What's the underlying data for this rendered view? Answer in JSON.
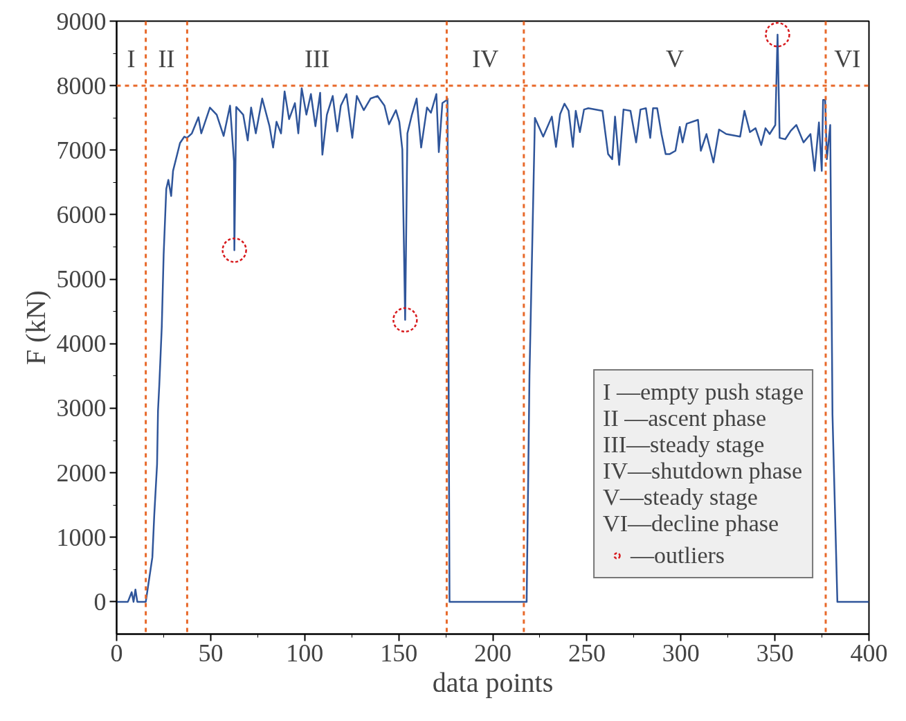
{
  "chart_data": {
    "type": "line",
    "xlabel": "data points",
    "ylabel": "F (kN)",
    "xlim": [
      0,
      400
    ],
    "ylim": [
      -500,
      9000
    ],
    "xticks": [
      0,
      50,
      100,
      150,
      200,
      250,
      300,
      350,
      400
    ],
    "yticks": [
      0,
      1000,
      2000,
      3000,
      4000,
      5000,
      6000,
      7000,
      8000,
      9000
    ],
    "grid": false,
    "legend": "bottom right",
    "line_style": "solid",
    "series": [
      {
        "color": "#2f559a",
        "x": [
          0,
          6,
          8,
          9,
          10,
          11,
          13,
          15.5,
          19,
          20,
          21.5,
          22,
          22.7,
          24,
          25,
          26.4,
          27.5,
          29,
          30,
          33.7,
          36,
          37.4,
          40,
          43.5,
          45,
          49.6,
          53.2,
          56.9,
          60.3,
          62.4,
          62.6,
          63.6,
          67.3,
          69.7,
          71.5,
          74,
          77.4,
          81.3,
          83.2,
          85,
          87.4,
          89.3,
          91.7,
          94.8,
          96.6,
          98.4,
          100.9,
          103.3,
          105.7,
          108.2,
          109.4,
          111.8,
          114.9,
          117.3,
          119.2,
          122.2,
          125.3,
          127.7,
          131.4,
          135,
          138.7,
          142.4,
          144.8,
          148.5,
          150.3,
          151.9,
          153.4,
          154.6,
          157,
          159.5,
          161.9,
          165,
          167.1,
          170,
          171.3,
          173.2,
          175.2,
          175.9,
          177,
          218,
          219.5,
          222.4,
          226.8,
          231.4,
          233.6,
          235.8,
          238.1,
          240.3,
          242.6,
          244.1,
          246.3,
          248.5,
          250.8,
          258.3,
          261.3,
          263.5,
          265,
          267.2,
          269.5,
          273.2,
          276.2,
          278.5,
          281.4,
          283.7,
          285.2,
          287.4,
          289.7,
          291.9,
          294.1,
          297.1,
          299.4,
          300.9,
          303.1,
          309.1,
          310.6,
          313.6,
          317.3,
          320.3,
          324.1,
          331.5,
          333.8,
          336.7,
          339.7,
          342.7,
          345,
          347.2,
          350.2,
          351.4,
          352.5,
          355.5,
          358.4,
          361.4,
          365.2,
          368.9,
          371.1,
          373.4,
          374.9,
          375.6,
          376.7,
          377.6,
          379.4,
          380.6,
          383.2,
          400
        ],
        "values": [
          0,
          0,
          150,
          0,
          190,
          0,
          0,
          0,
          690,
          1340,
          2130,
          2960,
          3370,
          4260,
          5380,
          6400,
          6540,
          6290,
          6680,
          7110,
          7210,
          7190,
          7260,
          7510,
          7260,
          7660,
          7550,
          7220,
          7690,
          6830,
          5450,
          7670,
          7550,
          7150,
          7660,
          7260,
          7800,
          7370,
          7040,
          7440,
          7260,
          7910,
          7480,
          7730,
          7260,
          7960,
          7550,
          7870,
          7370,
          7890,
          6930,
          7550,
          7840,
          7290,
          7690,
          7870,
          7190,
          7840,
          7620,
          7800,
          7840,
          7690,
          7400,
          7620,
          7440,
          7010,
          4370,
          7260,
          7550,
          7800,
          7040,
          7660,
          7580,
          7870,
          6970,
          7730,
          7770,
          7800,
          0,
          0,
          3500,
          7500,
          7210,
          7520,
          7050,
          7560,
          7720,
          7610,
          7050,
          7610,
          7280,
          7630,
          7650,
          7610,
          6940,
          6860,
          7520,
          6770,
          7630,
          7610,
          7120,
          7630,
          7650,
          7190,
          7650,
          7650,
          7250,
          6940,
          6940,
          6990,
          7360,
          7120,
          7410,
          7470,
          6990,
          7250,
          6810,
          7320,
          7250,
          7210,
          7610,
          7280,
          7340,
          7080,
          7340,
          7250,
          7390,
          8790,
          7190,
          7170,
          7300,
          7390,
          7120,
          7250,
          6680,
          7430,
          6680,
          7780,
          7780,
          6860,
          7390,
          2900,
          0,
          0
        ]
      },
      {
        "type": "scatter",
        "name": "—outliers",
        "color": "#d7191c",
        "marker": "circle",
        "x": [
          62.6,
          153.4,
          351.4
        ],
        "values": [
          5450,
          4370,
          8790
        ]
      }
    ],
    "ref_lines": [
      {
        "axis": "x",
        "value": 15.5,
        "label": null,
        "color": "#e8692a",
        "line_style": "dashed"
      },
      {
        "axis": "x",
        "value": 37.5,
        "label": null,
        "color": "#e8692a",
        "line_style": "dashed"
      },
      {
        "axis": "x",
        "value": 175.5,
        "label": null,
        "color": "#e8692a",
        "line_style": "dashed"
      },
      {
        "axis": "x",
        "value": 216.5,
        "label": null,
        "color": "#e8692a",
        "line_style": "dashed"
      },
      {
        "axis": "x",
        "value": 377,
        "label": null,
        "color": "#e8692a",
        "line_style": "dashed"
      },
      {
        "axis": "y",
        "value": 8000,
        "label": null,
        "color": "#e8692a",
        "line_style": "dashed"
      }
    ],
    "annotations": [
      "I",
      "II",
      "III",
      "IV",
      "V",
      "VI",
      "I —empty push stage",
      "II —ascent phase",
      "III—steady stage",
      "IV—shutdown phase",
      "V—steady stage",
      "VI—decline phase"
    ]
  }
}
